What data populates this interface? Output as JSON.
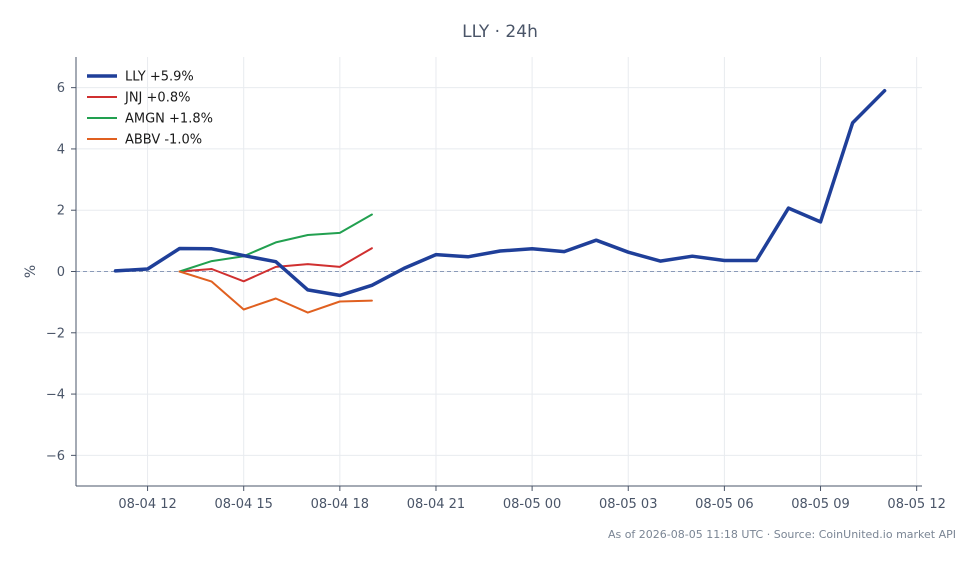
{
  "chart_data": {
    "type": "line",
    "title": "LLY · 24h",
    "ylabel": "%",
    "ylim": [
      -7,
      7
    ],
    "yticks": [
      6,
      4,
      2,
      0,
      -2,
      -4,
      -6
    ],
    "ytick_labels": [
      "6",
      "4",
      "2",
      "0",
      "−2",
      "−4",
      "−6"
    ],
    "xlim": [
      "2026-08-04 09:46",
      "2026-08-05 12:10"
    ],
    "xticks": [
      "2026-08-04 12:00",
      "2026-08-04 15:00",
      "2026-08-04 18:00",
      "2026-08-04 21:00",
      "2026-08-05 00:00",
      "2026-08-05 03:00",
      "2026-08-05 06:00",
      "2026-08-05 09:00",
      "2026-08-05 12:00"
    ],
    "xtick_labels": [
      "08-04 12",
      "08-04 15",
      "08-04 18",
      "08-04 21",
      "08-05 00",
      "08-05 03",
      "08-05 06",
      "08-05 09",
      "08-05 12"
    ],
    "grid": true,
    "zero_line": true,
    "legend_position": "top-left",
    "series": [
      {
        "name": "LLY +5.9%",
        "color": "#1f3f99",
        "width": 3.5,
        "x": [
          "2026-08-04 11:00",
          "2026-08-04 12:00",
          "2026-08-04 13:00",
          "2026-08-04 14:00",
          "2026-08-04 15:00",
          "2026-08-04 16:00",
          "2026-08-04 17:00",
          "2026-08-04 18:00",
          "2026-08-04 19:00",
          "2026-08-04 20:00",
          "2026-08-04 21:00",
          "2026-08-04 22:00",
          "2026-08-04 23:00",
          "2026-08-05 00:00",
          "2026-08-05 01:00",
          "2026-08-05 02:00",
          "2026-08-05 03:00",
          "2026-08-05 04:00",
          "2026-08-05 05:00",
          "2026-08-05 06:00",
          "2026-08-05 07:00",
          "2026-08-05 08:00",
          "2026-08-05 09:00",
          "2026-08-05 10:00",
          "2026-08-05 11:00"
        ],
        "values": [
          0.02,
          0.08,
          0.75,
          0.74,
          0.52,
          0.32,
          -0.6,
          -0.78,
          -0.45,
          0.1,
          0.55,
          0.48,
          0.67,
          0.74,
          0.65,
          1.02,
          0.63,
          0.34,
          0.5,
          0.36,
          0.36,
          2.07,
          1.62,
          4.85,
          5.9
        ]
      },
      {
        "name": "JNJ +0.8%",
        "color": "#d03030",
        "width": 2,
        "x": [
          "2026-08-04 13:00",
          "2026-08-04 14:00",
          "2026-08-04 15:00",
          "2026-08-04 16:00",
          "2026-08-04 17:00",
          "2026-08-04 18:00",
          "2026-08-04 19:00"
        ],
        "values": [
          0.0,
          0.08,
          -0.32,
          0.15,
          0.24,
          0.15,
          0.76
        ]
      },
      {
        "name": "AMGN +1.8%",
        "color": "#22a050",
        "width": 2,
        "x": [
          "2026-08-04 13:00",
          "2026-08-04 14:00",
          "2026-08-04 15:00",
          "2026-08-04 16:00",
          "2026-08-04 17:00",
          "2026-08-04 18:00",
          "2026-08-04 19:00"
        ],
        "values": [
          0.0,
          0.34,
          0.5,
          0.95,
          1.19,
          1.26,
          1.86
        ]
      },
      {
        "name": "ABBV -1.0%",
        "color": "#e06020",
        "width": 2,
        "x": [
          "2026-08-04 13:00",
          "2026-08-04 14:00",
          "2026-08-04 15:00",
          "2026-08-04 16:00",
          "2026-08-04 17:00",
          "2026-08-04 18:00",
          "2026-08-04 19:00"
        ],
        "values": [
          0.0,
          -0.33,
          -1.24,
          -0.88,
          -1.34,
          -0.98,
          -0.95
        ]
      }
    ]
  },
  "footer": "As of 2026-08-05 11:18 UTC · Source: CoinUnited.io market API"
}
